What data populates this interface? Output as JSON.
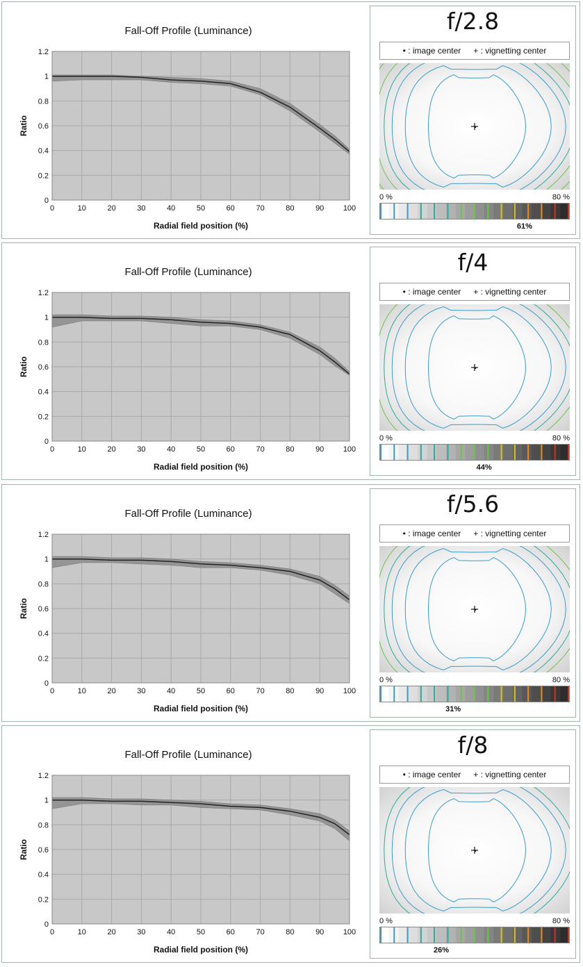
{
  "chart_data": [
    {
      "type": "line",
      "title": "Fall-Off Profile (Luminance)",
      "xlabel": "Radial field position (%)",
      "ylabel": "Ratio",
      "xlim": [
        0,
        100
      ],
      "ylim": [
        0,
        1.2
      ],
      "xticks": [
        0,
        10,
        20,
        30,
        40,
        50,
        60,
        70,
        80,
        90,
        100
      ],
      "yticks": [
        0,
        0.2,
        0.4,
        0.6,
        0.8,
        1,
        1.2
      ],
      "grid": true,
      "x": [
        0,
        10,
        20,
        30,
        40,
        50,
        60,
        70,
        80,
        90,
        95,
        100
      ],
      "y": [
        1.0,
        1.0,
        1.0,
        0.99,
        0.97,
        0.96,
        0.94,
        0.87,
        0.75,
        0.58,
        0.49,
        0.39
      ],
      "band_upper": [
        1.01,
        1.01,
        1.01,
        1.0,
        0.99,
        0.98,
        0.96,
        0.9,
        0.78,
        0.61,
        0.52,
        0.41
      ],
      "band_lower": [
        0.96,
        0.97,
        0.97,
        0.97,
        0.95,
        0.94,
        0.92,
        0.85,
        0.72,
        0.55,
        0.46,
        0.37
      ],
      "aperture": "f/2.8",
      "vignetting_percent": "61%",
      "vignetting_value": 61
    },
    {
      "type": "line",
      "title": "Fall-Off Profile (Luminance)",
      "xlabel": "Radial field position (%)",
      "ylabel": "Ratio",
      "xlim": [
        0,
        100
      ],
      "ylim": [
        0,
        1.2
      ],
      "xticks": [
        0,
        10,
        20,
        30,
        40,
        50,
        60,
        70,
        80,
        90,
        100
      ],
      "yticks": [
        0,
        0.2,
        0.4,
        0.6,
        0.8,
        1,
        1.2
      ],
      "grid": true,
      "x": [
        0,
        10,
        20,
        30,
        40,
        50,
        60,
        70,
        80,
        90,
        95,
        100
      ],
      "y": [
        1.0,
        1.0,
        0.99,
        0.99,
        0.98,
        0.96,
        0.95,
        0.92,
        0.86,
        0.73,
        0.64,
        0.54
      ],
      "band_upper": [
        1.02,
        1.02,
        1.01,
        1.01,
        1.0,
        0.98,
        0.97,
        0.94,
        0.88,
        0.76,
        0.67,
        0.56
      ],
      "band_lower": [
        0.92,
        0.97,
        0.97,
        0.97,
        0.95,
        0.93,
        0.93,
        0.9,
        0.83,
        0.7,
        0.61,
        0.53
      ],
      "aperture": "f/4",
      "vignetting_percent": "44%",
      "vignetting_value": 44
    },
    {
      "type": "line",
      "title": "Fall-Off Profile (Luminance)",
      "xlabel": "Radial field position (%)",
      "ylabel": "Ratio",
      "xlim": [
        0,
        100
      ],
      "ylim": [
        0,
        1.2
      ],
      "xticks": [
        0,
        10,
        20,
        30,
        40,
        50,
        60,
        70,
        80,
        90,
        100
      ],
      "yticks": [
        0,
        0.2,
        0.4,
        0.6,
        0.8,
        1,
        1.2
      ],
      "grid": true,
      "x": [
        0,
        10,
        20,
        30,
        40,
        50,
        60,
        70,
        80,
        90,
        95,
        100
      ],
      "y": [
        1.0,
        1.0,
        0.99,
        0.99,
        0.98,
        0.96,
        0.95,
        0.93,
        0.9,
        0.83,
        0.76,
        0.67
      ],
      "band_upper": [
        1.02,
        1.02,
        1.01,
        1.01,
        1.0,
        0.98,
        0.97,
        0.95,
        0.92,
        0.86,
        0.79,
        0.7
      ],
      "band_lower": [
        0.93,
        0.97,
        0.97,
        0.96,
        0.95,
        0.93,
        0.93,
        0.91,
        0.87,
        0.8,
        0.72,
        0.64
      ],
      "aperture": "f/5.6",
      "vignetting_percent": "31%",
      "vignetting_value": 31
    },
    {
      "type": "line",
      "title": "Fall-Off Profile (Luminance)",
      "xlabel": "Radial field position (%)",
      "ylabel": "Ratio",
      "xlim": [
        0,
        100
      ],
      "ylim": [
        0,
        1.2
      ],
      "xticks": [
        0,
        10,
        20,
        30,
        40,
        50,
        60,
        70,
        80,
        90,
        100
      ],
      "yticks": [
        0,
        0.2,
        0.4,
        0.6,
        0.8,
        1,
        1.2
      ],
      "grid": true,
      "x": [
        0,
        10,
        20,
        30,
        40,
        50,
        60,
        70,
        80,
        90,
        95,
        100
      ],
      "y": [
        1.0,
        1.0,
        0.99,
        0.99,
        0.98,
        0.97,
        0.95,
        0.94,
        0.91,
        0.86,
        0.81,
        0.72
      ],
      "band_upper": [
        1.02,
        1.02,
        1.01,
        1.01,
        1.0,
        0.99,
        0.97,
        0.96,
        0.93,
        0.89,
        0.84,
        0.75
      ],
      "band_lower": [
        0.93,
        0.97,
        0.97,
        0.96,
        0.96,
        0.94,
        0.93,
        0.92,
        0.88,
        0.83,
        0.77,
        0.67
      ],
      "aperture": "f/8",
      "vignetting_percent": "26%",
      "vignetting_value": 26
    }
  ],
  "legend": {
    "image_center": "• : image center",
    "vignetting_center": "+ : vignetting center"
  },
  "scale": {
    "label_min": "0 %",
    "label_max": "80 %",
    "min_value": 0,
    "max_value": 80
  },
  "colors": {
    "plot_bg": "#c8c8c8",
    "gridline": "#a9a9a9",
    "curve": "#222222",
    "band": "#8c8c8c",
    "contour_blue": "#3a9bc8",
    "contour_teal": "#2aa99a",
    "contour_green": "#6cc24a",
    "contour_yellow": "#d8c21a",
    "contour_orange": "#ee8a1a",
    "contour_red": "#dd2a1a"
  }
}
